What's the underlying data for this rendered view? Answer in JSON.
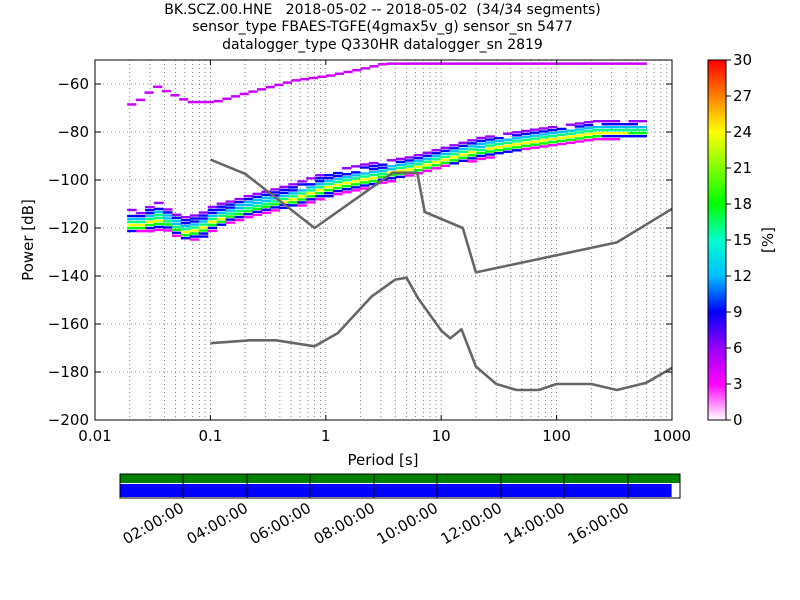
{
  "title_lines": [
    "BK.SCZ.00.HNE   2018-05-02 -- 2018-05-02  (34/34 segments)",
    "sensor_type FBAES-TGFE(4gmax5v_g) sensor_sn 5477",
    "datalogger_type Q330HR datalogger_sn 2819"
  ],
  "chart_data": [
    {
      "type": "heatmap",
      "xlabel": "Period [s]",
      "ylabel": "Power [dB]",
      "xscale": "log",
      "xlim": [
        0.01,
        1000
      ],
      "ylim": [
        -200,
        -50
      ],
      "xticks": [
        0.01,
        0.1,
        1,
        10,
        100,
        1000
      ],
      "xtick_labels": [
        "0.01",
        "0.1",
        "1",
        "10",
        "100",
        "1000"
      ],
      "yticks": [
        -200,
        -180,
        -160,
        -140,
        -120,
        -100,
        -80,
        -60
      ],
      "ytick_labels": [
        "−200",
        "−180",
        "−160",
        "−140",
        "−120",
        "−100",
        "−80",
        "−60"
      ],
      "grid": true,
      "colorbar": {
        "label": "[%]",
        "range": [
          0,
          30
        ],
        "ticks": [
          0,
          3,
          6,
          9,
          12,
          15,
          18,
          21,
          24,
          27,
          30
        ],
        "tick_labels": [
          "0",
          "3",
          "6",
          "9",
          "12",
          "15",
          "18",
          "21",
          "24",
          "27",
          "30"
        ],
        "colormap": [
          "#ffffff",
          "#ff00ff",
          "#9900ff",
          "#0000ff",
          "#00bfff",
          "#00ffcc",
          "#00ff00",
          "#80ff00",
          "#ffff00",
          "#ff8000",
          "#ff0000"
        ]
      },
      "psd_band": [
        {
          "period": 0.019,
          "low": -122,
          "high": -112
        },
        {
          "period": 0.025,
          "low": -121,
          "high": -114
        },
        {
          "period": 0.03,
          "low": -121,
          "high": -107
        },
        {
          "period": 0.035,
          "low": -120,
          "high": -111
        },
        {
          "period": 0.04,
          "low": -121,
          "high": -112
        },
        {
          "period": 0.05,
          "low": -124,
          "high": -115
        },
        {
          "period": 0.06,
          "low": -125,
          "high": -115
        },
        {
          "period": 0.08,
          "low": -124,
          "high": -113
        },
        {
          "period": 0.1,
          "low": -120,
          "high": -110
        },
        {
          "period": 0.15,
          "low": -117,
          "high": -108
        },
        {
          "period": 0.2,
          "low": -115,
          "high": -106
        },
        {
          "period": 0.3,
          "low": -113,
          "high": -104
        },
        {
          "period": 0.5,
          "low": -111,
          "high": -101
        },
        {
          "period": 1,
          "low": -107,
          "high": -96
        },
        {
          "period": 2,
          "low": -103,
          "high": -93
        },
        {
          "period": 5,
          "low": -98,
          "high": -90
        },
        {
          "period": 10,
          "low": -94,
          "high": -86
        },
        {
          "period": 20,
          "low": -91,
          "high": -82
        },
        {
          "period": 50,
          "low": -87,
          "high": -79
        },
        {
          "period": 100,
          "low": -85,
          "high": -77
        },
        {
          "period": 200,
          "low": -83,
          "high": -75
        },
        {
          "period": 600,
          "low": -82,
          "high": -75
        }
      ],
      "outlier_trace": [
        {
          "period": 0.019,
          "power": -68
        },
        {
          "period": 0.025,
          "power": -65
        },
        {
          "period": 0.03,
          "power": -60
        },
        {
          "period": 0.04,
          "power": -63
        },
        {
          "period": 0.06,
          "power": -67
        },
        {
          "period": 0.1,
          "power": -67
        },
        {
          "period": 0.2,
          "power": -63
        },
        {
          "period": 0.5,
          "power": -58
        },
        {
          "period": 1,
          "power": -56
        },
        {
          "period": 2,
          "power": -53
        },
        {
          "period": 3,
          "power": -51
        },
        {
          "period": 10,
          "power": -51
        },
        {
          "period": 100,
          "power": -51
        },
        {
          "period": 600,
          "power": -51
        }
      ],
      "series": [
        {
          "x": [
            0.1,
            0.2,
            0.8,
            3.8,
            6.2,
            7.2,
            15.4,
            20,
            333,
            1000
          ],
          "y": [
            -91.5,
            -97.4,
            -120,
            -97,
            -97,
            -113.3,
            -120,
            -138.5,
            -126,
            -112
          ]
        },
        {
          "x": [
            0.1,
            0.22,
            0.37,
            0.8,
            1.27,
            2.5,
            4,
            5,
            6.3,
            10,
            12,
            15,
            20,
            30,
            45,
            70,
            100,
            200,
            333,
            600,
            1000
          ],
          "y": [
            -168,
            -166.8,
            -166.8,
            -169.3,
            -163.8,
            -148.5,
            -141.5,
            -140.7,
            -149.2,
            -162.7,
            -166,
            -162.2,
            -177.7,
            -185,
            -187.5,
            -187.5,
            -185,
            -185,
            -187.5,
            -184.5,
            -178.3
          ]
        }
      ]
    },
    {
      "type": "timeline",
      "tick_labels": [
        "02:00:00",
        "04:00:00",
        "06:00:00",
        "08:00:00",
        "10:00:00",
        "12:00:00",
        "14:00:00",
        "16:00:00"
      ],
      "colors": {
        "data_bar": "#008000",
        "coverage_bar": "#0000ff"
      },
      "coverage_fraction": 0.985
    }
  ]
}
